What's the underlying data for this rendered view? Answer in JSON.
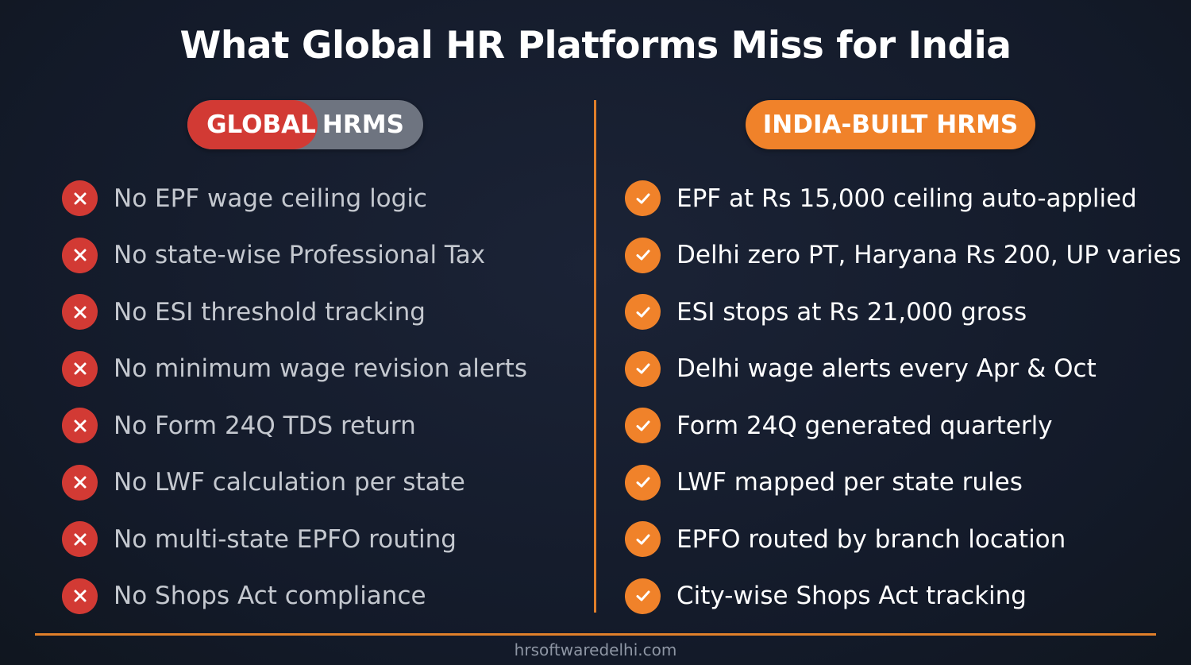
{
  "title": "What Global HR Platforms Miss for India",
  "left": {
    "badge_part1": "GLOBAL",
    "badge_part2": "HRMS",
    "items": [
      "No EPF wage ceiling logic",
      "No state-wise Professional Tax",
      "No ESI threshold tracking",
      "No minimum wage revision alerts",
      "No Form 24Q TDS return",
      "No LWF calculation per state",
      "No multi-state EPFO routing",
      "No Shops Act compliance"
    ],
    "icon": "x-icon",
    "accent": "#d23a34"
  },
  "right": {
    "badge": "INDIA-BUILT HRMS",
    "items": [
      "EPF at Rs 15,000 ceiling auto-applied",
      "Delhi zero PT, Haryana Rs 200, UP varies",
      "ESI stops at Rs 21,000 gross",
      "Delhi wage alerts every Apr & Oct",
      "Form 24Q generated quarterly",
      "LWF mapped per state rules",
      "EPFO routed by branch location",
      "City-wise Shops Act tracking"
    ],
    "icon": "check-icon",
    "accent": "#f0822a"
  },
  "footer": "hrsoftwaredelhi.com"
}
